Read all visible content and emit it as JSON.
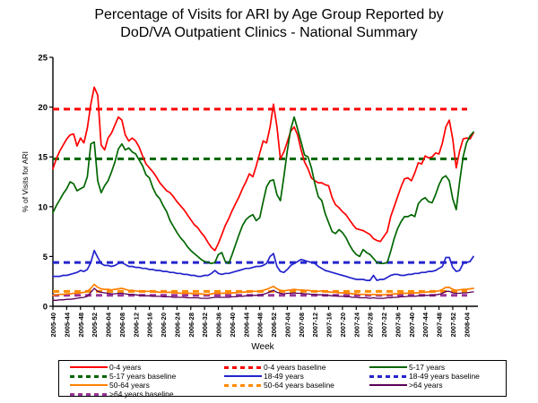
{
  "title": {
    "line1": "Percentage of Visits for ARI by Age Group Reported by",
    "line2": "DoD/VA Outpatient Clinics - National Summary"
  },
  "chart_data": {
    "type": "line",
    "title": "Percentage of Visits for ARI by Age Group Reported by DoD/VA Outpatient Clinics - National Summary",
    "xlabel": "Week",
    "ylabel": "% of Visits for ARI",
    "ylim": [
      0,
      25
    ],
    "y_tick_labels": [
      "0",
      "5",
      "10",
      "15",
      "20",
      "25"
    ],
    "y_ticks": [
      0,
      5,
      10,
      15,
      20,
      25
    ],
    "x_tick_interval_weeks": 4,
    "weeks_total": 123,
    "grid": false,
    "legend_position": "bottom",
    "x_tick_labels": [
      "2005-40",
      "2005-44",
      "2005-48",
      "2005-52",
      "2006-04",
      "2006-08",
      "2006-12",
      "2006-16",
      "2006-20",
      "2006-24",
      "2006-28",
      "2006-32",
      "2006-36",
      "2006-40",
      "2006-44",
      "2006-48",
      "2006-52",
      "2007-04",
      "2007-08",
      "2007-12",
      "2007-16",
      "2007-20",
      "2007-24",
      "2007-28",
      "2007-32",
      "2007-36",
      "2007-40",
      "2007-44",
      "2007-48",
      "2007-52",
      "2008-04"
    ],
    "series": [
      {
        "name": "0-4 years",
        "color": "#FF0000",
        "style": "solid",
        "width": 1.7,
        "values": [
          13.8,
          14.8,
          15.6,
          16.2,
          16.8,
          17.2,
          17.3,
          16.1,
          16.9,
          16.4,
          17.9,
          20.3,
          22.0,
          21.2,
          16.2,
          15.7,
          16.9,
          17.4,
          18.2,
          19.0,
          18.7,
          17.2,
          16.6,
          16.9,
          16.6,
          16.0,
          15.1,
          14.3,
          13.9,
          13.5,
          13.0,
          12.4,
          12.0,
          11.6,
          11.4,
          11.0,
          10.5,
          10.1,
          9.7,
          9.2,
          8.7,
          8.2,
          7.9,
          7.4,
          7.0,
          6.4,
          5.9,
          5.6,
          6.3,
          7.2,
          8.1,
          8.8,
          9.6,
          10.3,
          11.0,
          11.8,
          12.5,
          13.3,
          13.0,
          14.1,
          15.4,
          16.6,
          16.4,
          18.0,
          20.3,
          18.0,
          14.8,
          15.5,
          16.5,
          17.6,
          18.0,
          17.2,
          15.7,
          14.5,
          13.8,
          12.9,
          12.6,
          12.4,
          12.4,
          12.2,
          12.1,
          10.9,
          10.2,
          9.9,
          9.5,
          9.2,
          8.7,
          8.2,
          7.8,
          7.7,
          7.6,
          7.4,
          7.2,
          6.8,
          6.6,
          6.5,
          7.0,
          7.5,
          9.0,
          10.0,
          11.0,
          12.0,
          12.8,
          12.9,
          12.6,
          13.4,
          14.4,
          14.3,
          15.1,
          14.9,
          15.0,
          15.4,
          15.3,
          16.4,
          18.0,
          18.7,
          16.8,
          13.9,
          15.6,
          16.8,
          16.9,
          16.8,
          17.4
        ]
      },
      {
        "name": "5-17 years",
        "color": "#006600",
        "style": "solid",
        "width": 1.7,
        "values": [
          9.4,
          10.1,
          10.7,
          11.3,
          11.8,
          12.5,
          12.3,
          11.6,
          11.8,
          12.0,
          13.0,
          16.3,
          16.5,
          12.6,
          11.4,
          12.1,
          12.6,
          13.5,
          14.5,
          15.8,
          16.3,
          15.7,
          15.9,
          15.5,
          15.3,
          14.7,
          14.1,
          13.2,
          12.9,
          11.9,
          11.2,
          10.8,
          10.1,
          9.5,
          8.6,
          8.0,
          7.4,
          6.9,
          6.5,
          6.0,
          5.6,
          5.3,
          5.0,
          4.7,
          4.5,
          4.4,
          4.3,
          4.4,
          5.2,
          5.4,
          4.5,
          4.3,
          5.2,
          6.2,
          7.2,
          8.1,
          8.7,
          9.0,
          9.2,
          8.6,
          8.9,
          10.5,
          12.0,
          12.6,
          12.7,
          11.2,
          10.6,
          13.0,
          15.6,
          17.8,
          19.0,
          17.8,
          16.5,
          15.2,
          15.0,
          13.9,
          12.3,
          11.0,
          10.6,
          9.3,
          8.4,
          7.5,
          7.3,
          7.7,
          7.4,
          6.9,
          6.2,
          5.6,
          5.2,
          5.0,
          5.7,
          5.4,
          5.2,
          4.8,
          4.4,
          4.3,
          4.3,
          4.4,
          5.5,
          6.8,
          7.8,
          8.5,
          9.0,
          9.0,
          9.2,
          9.0,
          10.3,
          10.7,
          10.9,
          10.5,
          10.4,
          11.2,
          12.2,
          12.9,
          13.1,
          12.6,
          10.8,
          9.7,
          12.5,
          15.0,
          16.4,
          17.1,
          17.5
        ]
      },
      {
        "name": "18-49 years",
        "color": "#2424CC",
        "style": "solid",
        "width": 1.7,
        "values": [
          3.0,
          3.0,
          3.0,
          3.1,
          3.1,
          3.2,
          3.3,
          3.4,
          3.6,
          3.5,
          3.7,
          4.4,
          5.6,
          4.9,
          4.3,
          4.1,
          4.1,
          4.0,
          4.1,
          4.3,
          4.4,
          4.2,
          4.0,
          4.0,
          3.9,
          3.9,
          3.8,
          3.8,
          3.7,
          3.7,
          3.6,
          3.6,
          3.5,
          3.5,
          3.4,
          3.4,
          3.3,
          3.3,
          3.2,
          3.2,
          3.1,
          3.1,
          3.0,
          3.0,
          3.1,
          3.1,
          3.3,
          3.6,
          3.3,
          3.2,
          3.3,
          3.3,
          3.4,
          3.5,
          3.6,
          3.7,
          3.8,
          3.8,
          3.9,
          4.0,
          4.0,
          4.1,
          4.3,
          5.0,
          5.3,
          4.0,
          3.5,
          3.4,
          3.7,
          4.1,
          4.3,
          4.5,
          4.7,
          4.6,
          4.5,
          4.4,
          4.3,
          4.0,
          3.8,
          3.6,
          3.5,
          3.4,
          3.3,
          3.2,
          3.1,
          3.0,
          2.9,
          2.8,
          2.7,
          2.7,
          2.7,
          2.6,
          2.6,
          3.1,
          2.6,
          2.7,
          2.7,
          2.9,
          3.1,
          3.2,
          3.2,
          3.1,
          3.1,
          3.2,
          3.2,
          3.3,
          3.3,
          3.4,
          3.4,
          3.5,
          3.5,
          3.6,
          3.8,
          4.0,
          4.9,
          4.9,
          3.9,
          3.5,
          3.6,
          4.3,
          4.4,
          4.5,
          5.0
        ]
      },
      {
        "name": "50-64 years",
        "color": "#FF7F00",
        "style": "solid",
        "width": 1.7,
        "values": [
          1.1,
          1.15,
          1.2,
          1.2,
          1.25,
          1.25,
          1.3,
          1.3,
          1.35,
          1.4,
          1.5,
          1.8,
          2.2,
          1.9,
          1.75,
          1.7,
          1.7,
          1.65,
          1.7,
          1.75,
          1.8,
          1.7,
          1.6,
          1.6,
          1.55,
          1.5,
          1.5,
          1.5,
          1.5,
          1.45,
          1.45,
          1.4,
          1.4,
          1.4,
          1.4,
          1.35,
          1.35,
          1.3,
          1.3,
          1.3,
          1.3,
          1.25,
          1.25,
          1.25,
          1.2,
          1.2,
          1.25,
          1.3,
          1.3,
          1.3,
          1.3,
          1.3,
          1.35,
          1.35,
          1.4,
          1.4,
          1.45,
          1.45,
          1.5,
          1.5,
          1.55,
          1.6,
          1.7,
          1.85,
          2.0,
          1.75,
          1.6,
          1.55,
          1.6,
          1.65,
          1.7,
          1.65,
          1.65,
          1.6,
          1.6,
          1.55,
          1.5,
          1.5,
          1.55,
          1.5,
          1.45,
          1.4,
          1.4,
          1.35,
          1.35,
          1.3,
          1.3,
          1.25,
          1.25,
          1.2,
          1.2,
          1.2,
          1.15,
          1.2,
          1.15,
          1.15,
          1.15,
          1.2,
          1.2,
          1.25,
          1.25,
          1.3,
          1.3,
          1.3,
          1.3,
          1.35,
          1.35,
          1.4,
          1.4,
          1.45,
          1.45,
          1.5,
          1.55,
          1.7,
          1.9,
          1.9,
          1.7,
          1.6,
          1.65,
          1.7,
          1.7,
          1.75,
          1.8
        ]
      },
      {
        "name": ">64 years",
        "color": "#5A005A",
        "style": "solid",
        "width": 1.3,
        "values": [
          0.6,
          0.6,
          0.65,
          0.65,
          0.7,
          0.7,
          0.75,
          0.8,
          0.85,
          0.9,
          1.0,
          1.4,
          1.8,
          1.5,
          1.4,
          1.35,
          1.3,
          1.25,
          1.25,
          1.3,
          1.3,
          1.25,
          1.2,
          1.2,
          1.15,
          1.1,
          1.1,
          1.05,
          1.05,
          1.0,
          1.0,
          1.0,
          0.95,
          0.95,
          0.95,
          0.9,
          0.9,
          0.9,
          0.9,
          0.85,
          0.85,
          0.85,
          0.85,
          0.8,
          0.8,
          0.8,
          0.85,
          0.9,
          0.9,
          0.9,
          0.9,
          0.9,
          0.95,
          0.95,
          1.0,
          1.0,
          1.05,
          1.05,
          1.1,
          1.1,
          1.15,
          1.2,
          1.3,
          1.45,
          1.6,
          1.4,
          1.3,
          1.25,
          1.3,
          1.3,
          1.35,
          1.3,
          1.3,
          1.25,
          1.25,
          1.2,
          1.2,
          1.15,
          1.15,
          1.1,
          1.1,
          1.05,
          1.05,
          1.0,
          1.0,
          0.95,
          0.95,
          0.9,
          0.9,
          0.85,
          0.85,
          0.85,
          0.8,
          0.85,
          0.8,
          0.8,
          0.8,
          0.85,
          0.85,
          0.9,
          0.9,
          0.95,
          0.95,
          1.0,
          1.0,
          1.0,
          1.05,
          1.05,
          1.1,
          1.1,
          1.1,
          1.15,
          1.2,
          1.3,
          1.5,
          1.5,
          1.35,
          1.3,
          1.3,
          1.35,
          1.35,
          1.4,
          1.45
        ]
      }
    ],
    "baselines": [
      {
        "name": "0-4 years baseline",
        "color": "#FF0000",
        "value": 19.8
      },
      {
        "name": "5-17 years baseline",
        "color": "#006600",
        "value": 14.8
      },
      {
        "name": "18-49 years baseline",
        "color": "#2424CC",
        "value": 4.4
      },
      {
        "name": "50-64 years baseline",
        "color": "#FF8C00",
        "value": 1.5
      },
      {
        "name": ">64 years baseline",
        "color": "#993399",
        "value": 1.1
      }
    ],
    "legend_items": [
      {
        "label": "0-4 years",
        "color": "#FF0000",
        "dashed": false
      },
      {
        "label": "0-4 years baseline",
        "color": "#FF0000",
        "dashed": true
      },
      {
        "label": "5-17 years",
        "color": "#006600",
        "dashed": false
      },
      {
        "label": "5-17 years baseline",
        "color": "#006600",
        "dashed": true
      },
      {
        "label": "18-49 years",
        "color": "#2424CC",
        "dashed": false
      },
      {
        "label": "18-49 years baseline",
        "color": "#2424CC",
        "dashed": true
      },
      {
        "label": "50-64 years",
        "color": "#FF7F00",
        "dashed": false
      },
      {
        "label": "50-64 years baseline",
        "color": "#FF8C00",
        "dashed": true
      },
      {
        "label": ">64 years",
        "color": "#5A005A",
        "dashed": false
      },
      {
        "label": ">64 years baseline",
        "color": "#993399",
        "dashed": true
      }
    ]
  }
}
